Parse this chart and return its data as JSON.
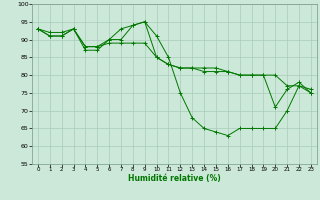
{
  "xlabel": "Humidité relative (%)",
  "background_color": "#cce8d8",
  "grid_color": "#aaccbb",
  "line_color": "#007700",
  "xlim": [
    -0.5,
    23.5
  ],
  "ylim": [
    55,
    100
  ],
  "yticks": [
    55,
    60,
    65,
    70,
    75,
    80,
    85,
    90,
    95,
    100
  ],
  "xticks": [
    0,
    1,
    2,
    3,
    4,
    5,
    6,
    7,
    8,
    9,
    10,
    11,
    12,
    13,
    14,
    15,
    16,
    17,
    18,
    19,
    20,
    21,
    22,
    23
  ],
  "line1_x": [
    0,
    1,
    2,
    3,
    4,
    5,
    6,
    7,
    8,
    9,
    10,
    11,
    12,
    13,
    14,
    15,
    16,
    17,
    18,
    19,
    20,
    21,
    22,
    23
  ],
  "line1_y": [
    93,
    91,
    91,
    93,
    87,
    87,
    90,
    90,
    94,
    95,
    91,
    85,
    75,
    68,
    65,
    64,
    63,
    65,
    65,
    65,
    65,
    70,
    77,
    76
  ],
  "line2_x": [
    0,
    1,
    2,
    3,
    4,
    5,
    6,
    7,
    8,
    9,
    10,
    11,
    12,
    13,
    14,
    15,
    16,
    17,
    18,
    19,
    20,
    21,
    22,
    23
  ],
  "line2_y": [
    93,
    91,
    91,
    93,
    88,
    88,
    90,
    93,
    94,
    95,
    85,
    83,
    82,
    82,
    82,
    82,
    81,
    80,
    80,
    80,
    80,
    77,
    77,
    75
  ],
  "line3_x": [
    0,
    1,
    2,
    3,
    4,
    5,
    6,
    7,
    8,
    9,
    10,
    11,
    12,
    13,
    14,
    15,
    16,
    17,
    18,
    19,
    20,
    21,
    22,
    23
  ],
  "line3_y": [
    93,
    92,
    92,
    93,
    88,
    88,
    89,
    89,
    89,
    89,
    85,
    83,
    82,
    82,
    81,
    81,
    81,
    80,
    80,
    80,
    71,
    76,
    78,
    75
  ]
}
